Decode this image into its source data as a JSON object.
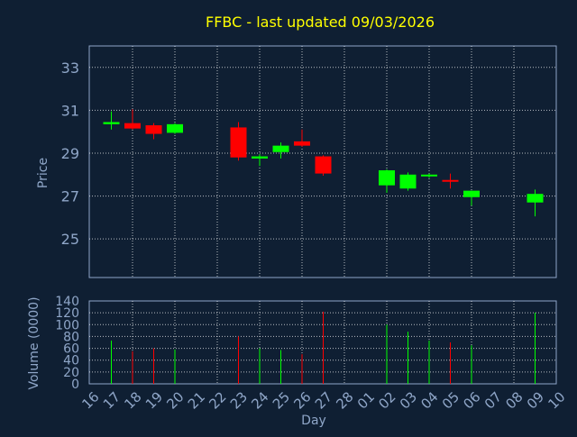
{
  "chart_data": {
    "type": "candlestick",
    "title": "FFBC - last updated 09/03/2026",
    "xlabel": "Day",
    "colors": {
      "background": "#0f1f33",
      "title": "#ffff00",
      "axis_text": "#8fa6c8",
      "grid": "#ffffff",
      "up": "#00ff00",
      "down": "#ff0000"
    },
    "price": {
      "ylabel": "Price",
      "ylim": [
        23.2,
        34.0
      ],
      "yticks": [
        "25",
        "27",
        "29",
        "31",
        "33"
      ],
      "grid": true
    },
    "volume": {
      "ylabel": "Volume (0000)",
      "ylim": [
        0,
        140
      ],
      "yticks": [
        "0",
        "20",
        "40",
        "60",
        "80",
        "100",
        "120",
        "140"
      ],
      "grid": true
    },
    "x_ticks": [
      "16",
      "17",
      "18",
      "19",
      "20",
      "21",
      "22",
      "23",
      "24",
      "25",
      "26",
      "27",
      "28",
      "01",
      "02",
      "03",
      "04",
      "05",
      "06",
      "07",
      "08",
      "09",
      "10"
    ],
    "candles": [
      {
        "day": "17",
        "open": 30.35,
        "high": 30.95,
        "low": 30.1,
        "close": 30.45,
        "volume": 73
      },
      {
        "day": "18",
        "open": 30.4,
        "high": 31.05,
        "low": 30.1,
        "close": 30.15,
        "volume": 55
      },
      {
        "day": "19",
        "open": 30.3,
        "high": 30.4,
        "low": 29.65,
        "close": 29.9,
        "volume": 60
      },
      {
        "day": "20",
        "open": 29.95,
        "high": 30.4,
        "low": 29.9,
        "close": 30.35,
        "volume": 58
      },
      {
        "day": "23",
        "open": 30.2,
        "high": 30.45,
        "low": 28.65,
        "close": 28.8,
        "volume": 80
      },
      {
        "day": "24",
        "open": 28.75,
        "high": 28.95,
        "low": 28.4,
        "close": 28.85,
        "volume": 60
      },
      {
        "day": "25",
        "open": 29.05,
        "high": 29.5,
        "low": 28.75,
        "close": 29.35,
        "volume": 57
      },
      {
        "day": "26",
        "open": 29.55,
        "high": 30.1,
        "low": 29.3,
        "close": 29.35,
        "volume": 50
      },
      {
        "day": "27",
        "open": 28.85,
        "high": 28.9,
        "low": 27.95,
        "close": 28.05,
        "volume": 122
      },
      {
        "day": "02",
        "open": 27.5,
        "high": 28.25,
        "low": 27.15,
        "close": 28.2,
        "volume": 100
      },
      {
        "day": "03",
        "open": 27.35,
        "high": 28.1,
        "low": 27.25,
        "close": 28.0,
        "volume": 88
      },
      {
        "day": "04",
        "open": 27.95,
        "high": 28.05,
        "low": 27.85,
        "close": 28.0,
        "volume": 73
      },
      {
        "day": "05",
        "open": 27.75,
        "high": 28.05,
        "low": 27.35,
        "close": 27.7,
        "volume": 70
      },
      {
        "day": "06",
        "open": 26.95,
        "high": 27.25,
        "low": 26.55,
        "close": 27.25,
        "volume": 65
      },
      {
        "day": "09",
        "open": 26.7,
        "high": 27.3,
        "low": 26.05,
        "close": 27.1,
        "volume": 120
      }
    ]
  }
}
